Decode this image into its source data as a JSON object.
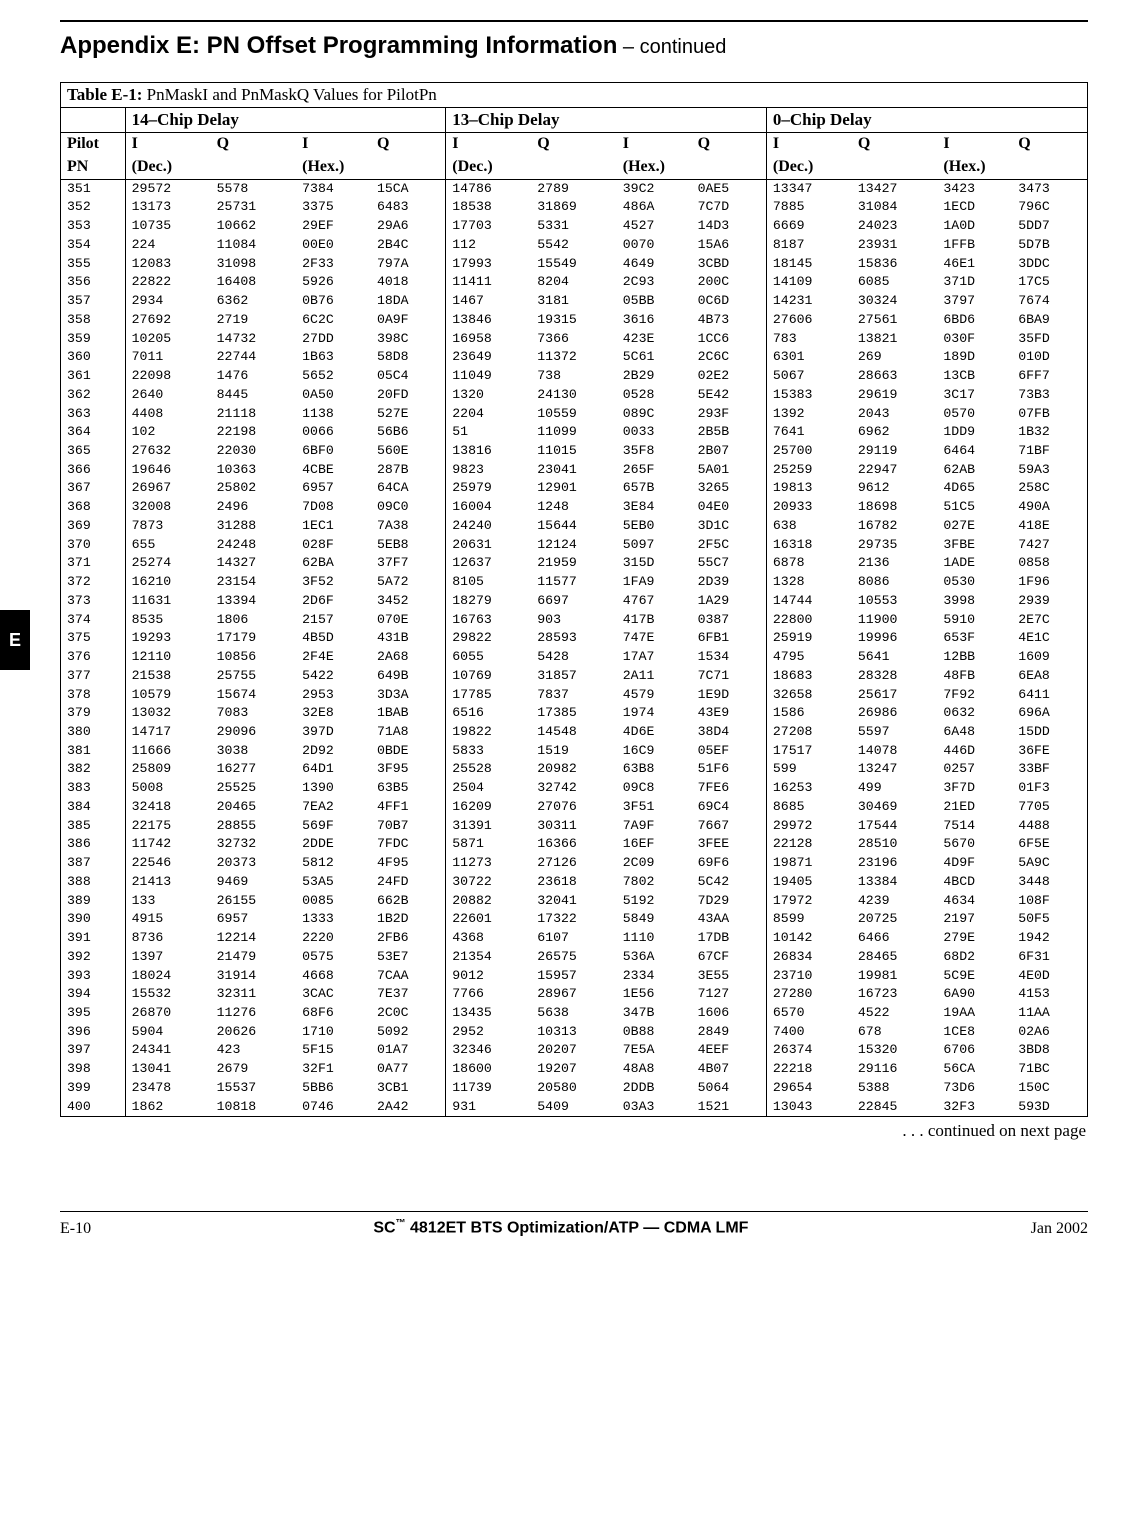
{
  "header": {
    "title_main": "Appendix E: PN Offset Programming Information",
    "title_cont": " – continued"
  },
  "side_tab": "E",
  "table": {
    "caption_bold": "Table E-1:",
    "caption_rest": " PnMaskI and PnMaskQ Values for PilotPn",
    "group_headers": [
      "14–Chip Delay",
      "13–Chip Delay",
      "0–Chip Delay"
    ],
    "col_iq": [
      "I",
      "Q"
    ],
    "pilot_label": "Pilot",
    "pn_label": "PN",
    "dec_label": "(Dec.)",
    "hex_label": "(Hex.)",
    "rows": [
      [
        "351",
        "29572",
        "5578",
        "7384",
        "15CA",
        "14786",
        "2789",
        "39C2",
        "0AE5",
        "13347",
        "13427",
        "3423",
        "3473"
      ],
      [
        "352",
        "13173",
        "25731",
        "3375",
        "6483",
        "18538",
        "31869",
        "486A",
        "7C7D",
        "7885",
        "31084",
        "1ECD",
        "796C"
      ],
      [
        "353",
        "10735",
        "10662",
        "29EF",
        "29A6",
        "17703",
        "5331",
        "4527",
        "14D3",
        "6669",
        "24023",
        "1A0D",
        "5DD7"
      ],
      [
        "354",
        "224",
        "11084",
        "00E0",
        "2B4C",
        "112",
        "5542",
        "0070",
        "15A6",
        "8187",
        "23931",
        "1FFB",
        "5D7B"
      ],
      [
        "355",
        "12083",
        "31098",
        "2F33",
        "797A",
        "17993",
        "15549",
        "4649",
        "3CBD",
        "18145",
        "15836",
        "46E1",
        "3DDC"
      ],
      [
        "356",
        "22822",
        "16408",
        "5926",
        "4018",
        "11411",
        "8204",
        "2C93",
        "200C",
        "14109",
        "6085",
        "371D",
        "17C5"
      ],
      [
        "357",
        "2934",
        "6362",
        "0B76",
        "18DA",
        "1467",
        "3181",
        "05BB",
        "0C6D",
        "14231",
        "30324",
        "3797",
        "7674"
      ],
      [
        "358",
        "27692",
        "2719",
        "6C2C",
        "0A9F",
        "13846",
        "19315",
        "3616",
        "4B73",
        "27606",
        "27561",
        "6BD6",
        "6BA9"
      ],
      [
        "359",
        "10205",
        "14732",
        "27DD",
        "398C",
        "16958",
        "7366",
        "423E",
        "1CC6",
        "783",
        "13821",
        "030F",
        "35FD"
      ],
      [
        "360",
        "7011",
        "22744",
        "1B63",
        "58D8",
        "23649",
        "11372",
        "5C61",
        "2C6C",
        "6301",
        "269",
        "189D",
        "010D"
      ],
      [
        "361",
        "22098",
        "1476",
        "5652",
        "05C4",
        "11049",
        "738",
        "2B29",
        "02E2",
        "5067",
        "28663",
        "13CB",
        "6FF7"
      ],
      [
        "362",
        "2640",
        "8445",
        "0A50",
        "20FD",
        "1320",
        "24130",
        "0528",
        "5E42",
        "15383",
        "29619",
        "3C17",
        "73B3"
      ],
      [
        "363",
        "4408",
        "21118",
        "1138",
        "527E",
        "2204",
        "10559",
        "089C",
        "293F",
        "1392",
        "2043",
        "0570",
        "07FB"
      ],
      [
        "364",
        "102",
        "22198",
        "0066",
        "56B6",
        "51",
        "11099",
        "0033",
        "2B5B",
        "7641",
        "6962",
        "1DD9",
        "1B32"
      ],
      [
        "365",
        "27632",
        "22030",
        "6BF0",
        "560E",
        "13816",
        "11015",
        "35F8",
        "2B07",
        "25700",
        "29119",
        "6464",
        "71BF"
      ],
      [
        "366",
        "19646",
        "10363",
        "4CBE",
        "287B",
        "9823",
        "23041",
        "265F",
        "5A01",
        "25259",
        "22947",
        "62AB",
        "59A3"
      ],
      [
        "367",
        "26967",
        "25802",
        "6957",
        "64CA",
        "25979",
        "12901",
        "657B",
        "3265",
        "19813",
        "9612",
        "4D65",
        "258C"
      ],
      [
        "368",
        "32008",
        "2496",
        "7D08",
        "09C0",
        "16004",
        "1248",
        "3E84",
        "04E0",
        "20933",
        "18698",
        "51C5",
        "490A"
      ],
      [
        "369",
        "7873",
        "31288",
        "1EC1",
        "7A38",
        "24240",
        "15644",
        "5EB0",
        "3D1C",
        "638",
        "16782",
        "027E",
        "418E"
      ],
      [
        "370",
        "655",
        "24248",
        "028F",
        "5EB8",
        "20631",
        "12124",
        "5097",
        "2F5C",
        "16318",
        "29735",
        "3FBE",
        "7427"
      ],
      [
        "371",
        "25274",
        "14327",
        "62BA",
        "37F7",
        "12637",
        "21959",
        "315D",
        "55C7",
        "6878",
        "2136",
        "1ADE",
        "0858"
      ],
      [
        "372",
        "16210",
        "23154",
        "3F52",
        "5A72",
        "8105",
        "11577",
        "1FA9",
        "2D39",
        "1328",
        "8086",
        "0530",
        "1F96"
      ],
      [
        "373",
        "11631",
        "13394",
        "2D6F",
        "3452",
        "18279",
        "6697",
        "4767",
        "1A29",
        "14744",
        "10553",
        "3998",
        "2939"
      ],
      [
        "374",
        "8535",
        "1806",
        "2157",
        "070E",
        "16763",
        "903",
        "417B",
        "0387",
        "22800",
        "11900",
        "5910",
        "2E7C"
      ],
      [
        "375",
        "19293",
        "17179",
        "4B5D",
        "431B",
        "29822",
        "28593",
        "747E",
        "6FB1",
        "25919",
        "19996",
        "653F",
        "4E1C"
      ],
      [
        "376",
        "12110",
        "10856",
        "2F4E",
        "2A68",
        "6055",
        "5428",
        "17A7",
        "1534",
        "4795",
        "5641",
        "12BB",
        "1609"
      ],
      [
        "377",
        "21538",
        "25755",
        "5422",
        "649B",
        "10769",
        "31857",
        "2A11",
        "7C71",
        "18683",
        "28328",
        "48FB",
        "6EA8"
      ],
      [
        "378",
        "10579",
        "15674",
        "2953",
        "3D3A",
        "17785",
        "7837",
        "4579",
        "1E9D",
        "32658",
        "25617",
        "7F92",
        "6411"
      ],
      [
        "379",
        "13032",
        "7083",
        "32E8",
        "1BAB",
        "6516",
        "17385",
        "1974",
        "43E9",
        "1586",
        "26986",
        "0632",
        "696A"
      ],
      [
        "380",
        "14717",
        "29096",
        "397D",
        "71A8",
        "19822",
        "14548",
        "4D6E",
        "38D4",
        "27208",
        "5597",
        "6A48",
        "15DD"
      ],
      [
        "381",
        "11666",
        "3038",
        "2D92",
        "0BDE",
        "5833",
        "1519",
        "16C9",
        "05EF",
        "17517",
        "14078",
        "446D",
        "36FE"
      ],
      [
        "382",
        "25809",
        "16277",
        "64D1",
        "3F95",
        "25528",
        "20982",
        "63B8",
        "51F6",
        "599",
        "13247",
        "0257",
        "33BF"
      ],
      [
        "383",
        "5008",
        "25525",
        "1390",
        "63B5",
        "2504",
        "32742",
        "09C8",
        "7FE6",
        "16253",
        "499",
        "3F7D",
        "01F3"
      ],
      [
        "384",
        "32418",
        "20465",
        "7EA2",
        "4FF1",
        "16209",
        "27076",
        "3F51",
        "69C4",
        "8685",
        "30469",
        "21ED",
        "7705"
      ],
      [
        "385",
        "22175",
        "28855",
        "569F",
        "70B7",
        "31391",
        "30311",
        "7A9F",
        "7667",
        "29972",
        "17544",
        "7514",
        "4488"
      ],
      [
        "386",
        "11742",
        "32732",
        "2DDE",
        "7FDC",
        "5871",
        "16366",
        "16EF",
        "3FEE",
        "22128",
        "28510",
        "5670",
        "6F5E"
      ],
      [
        "387",
        "22546",
        "20373",
        "5812",
        "4F95",
        "11273",
        "27126",
        "2C09",
        "69F6",
        "19871",
        "23196",
        "4D9F",
        "5A9C"
      ],
      [
        "388",
        "21413",
        "9469",
        "53A5",
        "24FD",
        "30722",
        "23618",
        "7802",
        "5C42",
        "19405",
        "13384",
        "4BCD",
        "3448"
      ],
      [
        "389",
        "133",
        "26155",
        "0085",
        "662B",
        "20882",
        "32041",
        "5192",
        "7D29",
        "17972",
        "4239",
        "4634",
        "108F"
      ],
      [
        "390",
        "4915",
        "6957",
        "1333",
        "1B2D",
        "22601",
        "17322",
        "5849",
        "43AA",
        "8599",
        "20725",
        "2197",
        "50F5"
      ],
      [
        "391",
        "8736",
        "12214",
        "2220",
        "2FB6",
        "4368",
        "6107",
        "1110",
        "17DB",
        "10142",
        "6466",
        "279E",
        "1942"
      ],
      [
        "392",
        "1397",
        "21479",
        "0575",
        "53E7",
        "21354",
        "26575",
        "536A",
        "67CF",
        "26834",
        "28465",
        "68D2",
        "6F31"
      ],
      [
        "393",
        "18024",
        "31914",
        "4668",
        "7CAA",
        "9012",
        "15957",
        "2334",
        "3E55",
        "23710",
        "19981",
        "5C9E",
        "4E0D"
      ],
      [
        "394",
        "15532",
        "32311",
        "3CAC",
        "7E37",
        "7766",
        "28967",
        "1E56",
        "7127",
        "27280",
        "16723",
        "6A90",
        "4153"
      ],
      [
        "395",
        "26870",
        "11276",
        "68F6",
        "2C0C",
        "13435",
        "5638",
        "347B",
        "1606",
        "6570",
        "4522",
        "19AA",
        "11AA"
      ],
      [
        "396",
        "5904",
        "20626",
        "1710",
        "5092",
        "2952",
        "10313",
        "0B88",
        "2849",
        "7400",
        "678",
        "1CE8",
        "02A6"
      ],
      [
        "397",
        "24341",
        "423",
        "5F15",
        "01A7",
        "32346",
        "20207",
        "7E5A",
        "4EEF",
        "26374",
        "15320",
        "6706",
        "3BD8"
      ],
      [
        "398",
        "13041",
        "2679",
        "32F1",
        "0A77",
        "18600",
        "19207",
        "48A8",
        "4B07",
        "22218",
        "29116",
        "56CA",
        "71BC"
      ],
      [
        "399",
        "23478",
        "15537",
        "5BB6",
        "3CB1",
        "11739",
        "20580",
        "2DDB",
        "5064",
        "29654",
        "5388",
        "73D6",
        "150C"
      ],
      [
        "400",
        "1862",
        "10818",
        "0746",
        "2A42",
        "931",
        "5409",
        "03A3",
        "1521",
        "13043",
        "22845",
        "32F3",
        "593D"
      ]
    ]
  },
  "footer_note": ". . . continued on next page",
  "page_footer": {
    "left": "E-10",
    "center_prefix": "SC",
    "center_tm": "™",
    "center_rest": "4812ET BTS Optimization/ATP — CDMA LMF",
    "right": "Jan 2002"
  }
}
